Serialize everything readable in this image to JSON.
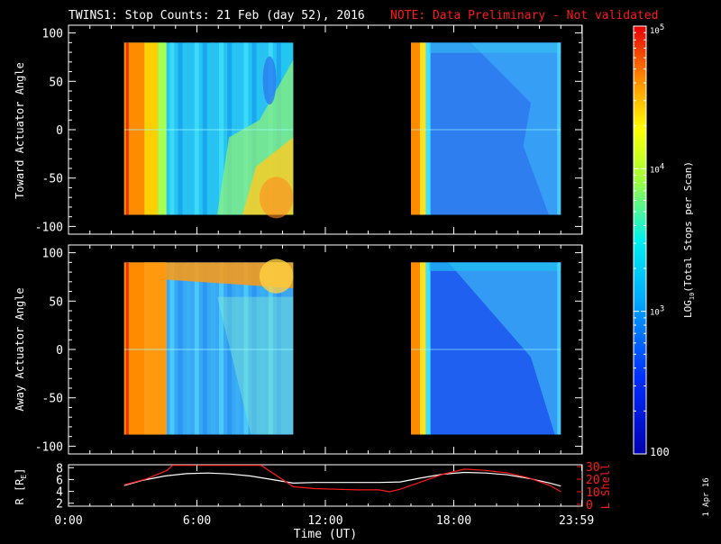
{
  "title": {
    "main": "TWINS1: Stop Counts: 21 Feb (day  52), 2016",
    "note": "NOTE: Data Preliminary - Not validated"
  },
  "colors": {
    "background": "#000000",
    "text": "#ffffff",
    "note": "#ff1a1a",
    "lshell": "#ff1a1a",
    "radius": "#ffffff"
  },
  "chart_data": [
    {
      "type": "heatmap",
      "name": "toward-panel",
      "ylabel": "Toward Actuator Angle",
      "ylim": [
        -108,
        108
      ],
      "yticks": [
        100,
        50,
        0,
        -50,
        -100
      ],
      "ytick_labels": [
        "100",
        "50",
        "0",
        "-50",
        "-100"
      ],
      "xlim_hours": [
        0,
        24
      ],
      "data_extent_angle": [
        -88,
        90
      ],
      "segments_hours": [
        [
          2.6,
          10.5
        ],
        [
          16.0,
          23.0
        ]
      ]
    },
    {
      "type": "heatmap",
      "name": "away-panel",
      "ylabel": "Away Actuator Angle",
      "ylim": [
        -108,
        108
      ],
      "yticks": [
        100,
        50,
        0,
        -50,
        -100
      ],
      "ytick_labels": [
        "100",
        "50",
        "0",
        "-50",
        "-100"
      ],
      "xlim_hours": [
        0,
        24
      ],
      "data_extent_angle": [
        -88,
        90
      ],
      "segments_hours": [
        [
          2.6,
          10.5
        ],
        [
          16.0,
          23.0
        ]
      ]
    },
    {
      "type": "line",
      "name": "orbit-panel",
      "xlabel": "Time (UT)",
      "x_ticks_hours": [
        0,
        6,
        12,
        18,
        23.983
      ],
      "x_tick_labels": [
        "0:00",
        "6:00",
        "12:00",
        "18:00",
        "23:59"
      ],
      "left_ylabel": "R [R",
      "left_ylabel_sub": "E",
      "left_ylabel_close": "]",
      "left_ylim": [
        1.5,
        8.5
      ],
      "left_ticks": [
        8,
        6,
        4,
        2
      ],
      "left_tick_labels": [
        "8",
        "6",
        "4",
        "2"
      ],
      "right_ylabel": "L Shell",
      "right_ylim": [
        0,
        30
      ],
      "right_ticks": [
        30,
        20,
        10,
        0
      ],
      "right_tick_labels": [
        "30",
        "20",
        "10",
        "0"
      ],
      "series": [
        {
          "name": "R",
          "axis": "left",
          "x": [
            2.6,
            3.5,
            4.5,
            5.5,
            6.5,
            7.5,
            8.5,
            9.5,
            10.5,
            11.5,
            12.5,
            13.5,
            14.5,
            15.5,
            16.5,
            17.5,
            18.5,
            19.5,
            20.5,
            21.5,
            22.5,
            23.0
          ],
          "y": [
            5.0,
            5.9,
            6.6,
            7.0,
            7.1,
            6.95,
            6.6,
            6.0,
            5.4,
            5.5,
            5.5,
            5.5,
            5.5,
            5.6,
            6.3,
            6.9,
            7.2,
            7.1,
            6.8,
            6.2,
            5.4,
            4.9
          ]
        },
        {
          "name": "L Shell",
          "axis": "right",
          "x": [
            2.6,
            3.6,
            4.6,
            4.85,
            9.0,
            10.5,
            11.5,
            12.5,
            13.5,
            14.5,
            15.0,
            15.5,
            16.5,
            17.5,
            18.5,
            19.5,
            20.5,
            21.5,
            22.5,
            23.0
          ],
          "y": [
            15.5,
            20.0,
            27.0,
            31.0,
            31.0,
            14.0,
            12.5,
            12.0,
            11.5,
            11.5,
            10.0,
            12.0,
            18.0,
            24.0,
            28.0,
            27.0,
            25.0,
            21.0,
            15.0,
            10.0
          ]
        }
      ]
    },
    {
      "type": "colorbar",
      "name": "colorbar",
      "label_prefix": "LOG",
      "label_sub": "10",
      "label_suffix": "(Total Stops per Scan)",
      "range": [
        100,
        100000
      ],
      "tick_labels": [
        {
          "base": "10",
          "exp": "5",
          "value": 100000
        },
        {
          "base": "10",
          "exp": "4",
          "value": 10000
        },
        {
          "base": "10",
          "exp": "3",
          "value": 1000
        },
        {
          "base": "100",
          "exp": "",
          "value": 100
        }
      ]
    }
  ],
  "footer": {
    "date_stamp": "1 Apr 16"
  }
}
